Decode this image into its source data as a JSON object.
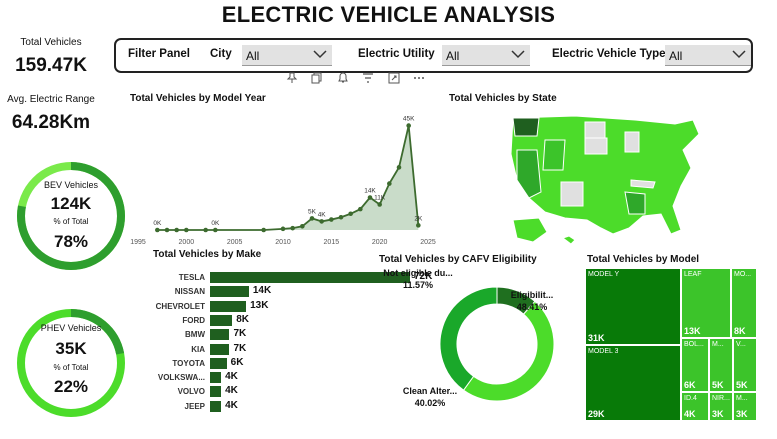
{
  "header": {
    "title": "ELECTRIC VEHICLE ANALYSIS"
  },
  "kpis": {
    "total_vehicles": {
      "label": "Total Vehicles",
      "value": "159.47K"
    },
    "avg_range": {
      "label": "Avg. Electric Range",
      "value": "64.28Km"
    }
  },
  "bev": {
    "label": "BEV Vehicles",
    "value": "124K",
    "pct_label": "% of Total",
    "pct": "78%",
    "fraction": 0.78
  },
  "phev": {
    "label": "PHEV Vehicles",
    "value": "35K",
    "pct_label": "% of Total",
    "pct": "22%",
    "fraction": 0.22
  },
  "filters": {
    "panel_label": "Filter Panel",
    "city": {
      "label": "City",
      "value": "All"
    },
    "utility": {
      "label": "Electric Utility",
      "value": "All"
    },
    "type": {
      "label": "Electric Vehicle Type",
      "value": "All"
    }
  },
  "toolbar": [
    "pin-icon",
    "copy-icon",
    "bell-icon",
    "filter-icon",
    "expand-icon",
    "more-icon"
  ],
  "colors": {
    "dark_green": "#1f5f1f",
    "mid_green": "#2e7d2e",
    "bright_green": "#4cdc2a",
    "light_green": "#7aea4a",
    "state_grey": "#e0e0e0",
    "state_dark": "#2a7a2a"
  },
  "chart_data": [
    {
      "type": "area",
      "title": "Total Vehicles by Model Year",
      "xlim": [
        1995,
        2025
      ],
      "ylim": [
        0,
        50
      ],
      "x_ticks": [
        "1995",
        "2000",
        "2005",
        "2010",
        "2015",
        "2020",
        "2025"
      ],
      "x": [
        1997,
        1998,
        1999,
        2000,
        2002,
        2003,
        2008,
        2010,
        2011,
        2012,
        2013,
        2014,
        2015,
        2016,
        2017,
        2018,
        2019,
        2020,
        2021,
        2022,
        2023,
        2024
      ],
      "values": [
        0,
        0,
        0,
        0,
        0,
        0,
        0,
        0.5,
        0.8,
        1.6,
        5,
        3.7,
        4.5,
        5.5,
        7,
        9,
        14,
        11,
        20,
        27,
        45,
        2
      ],
      "point_labels": [
        {
          "x": 1997,
          "y": 0,
          "label": "0K"
        },
        {
          "x": 2003,
          "y": 0,
          "label": "0K"
        },
        {
          "x": 2013,
          "y": 5,
          "label": "5K"
        },
        {
          "x": 2014,
          "y": 3.7,
          "label": "4K"
        },
        {
          "x": 2019,
          "y": 14,
          "label": "14K"
        },
        {
          "x": 2020,
          "y": 11,
          "label": "11K"
        },
        {
          "x": 2023,
          "y": 45,
          "label": "45K"
        },
        {
          "x": 2024,
          "y": 2,
          "label": "2K"
        }
      ]
    },
    {
      "type": "bar",
      "title": "Total Vehicles by Make",
      "categories": [
        "TESLA",
        "NISSAN",
        "CHEVROLET",
        "FORD",
        "BMW",
        "KIA",
        "TOYOTA",
        "VOLKSWA...",
        "VOLVO",
        "JEEP"
      ],
      "values": [
        72,
        14,
        13,
        8,
        7,
        7,
        6,
        4,
        4,
        4
      ],
      "labels": [
        "72K",
        "14K",
        "13K",
        "8K",
        "7K",
        "7K",
        "6K",
        "4K",
        "4K",
        "4K"
      ]
    },
    {
      "type": "pie",
      "title": "Total Vehicles by CAFV Eligibility",
      "categories": [
        "Not eligible du...",
        "Eligibilit...",
        "Clean Alter..."
      ],
      "values": [
        11.57,
        48.41,
        40.02
      ],
      "labels": [
        "11.57%",
        "48.41%",
        "40.02%"
      ],
      "colors": [
        "#1f6f1f",
        "#4cdc2a",
        "#1aa82a"
      ]
    },
    {
      "type": "heatmap",
      "title": "Total Vehicles by Model",
      "cells": [
        {
          "name": "MODEL Y",
          "label": "31K",
          "value": 31
        },
        {
          "name": "MODEL 3",
          "label": "29K",
          "value": 29
        },
        {
          "name": "LEAF",
          "label": "13K",
          "value": 13
        },
        {
          "name": "MO...",
          "label": "8K",
          "value": 8
        },
        {
          "name": "BOL...",
          "label": "6K",
          "value": 6
        },
        {
          "name": "M...",
          "label": "5K",
          "value": 5
        },
        {
          "name": "V...",
          "label": "5K",
          "value": 5
        },
        {
          "name": "ID.4",
          "label": "4K",
          "value": 4
        },
        {
          "name": "NIR...",
          "label": "3K",
          "value": 3
        },
        {
          "name": "M...",
          "label": "3K",
          "value": 3
        }
      ]
    }
  ],
  "map": {
    "title": "Total Vehicles by State"
  }
}
